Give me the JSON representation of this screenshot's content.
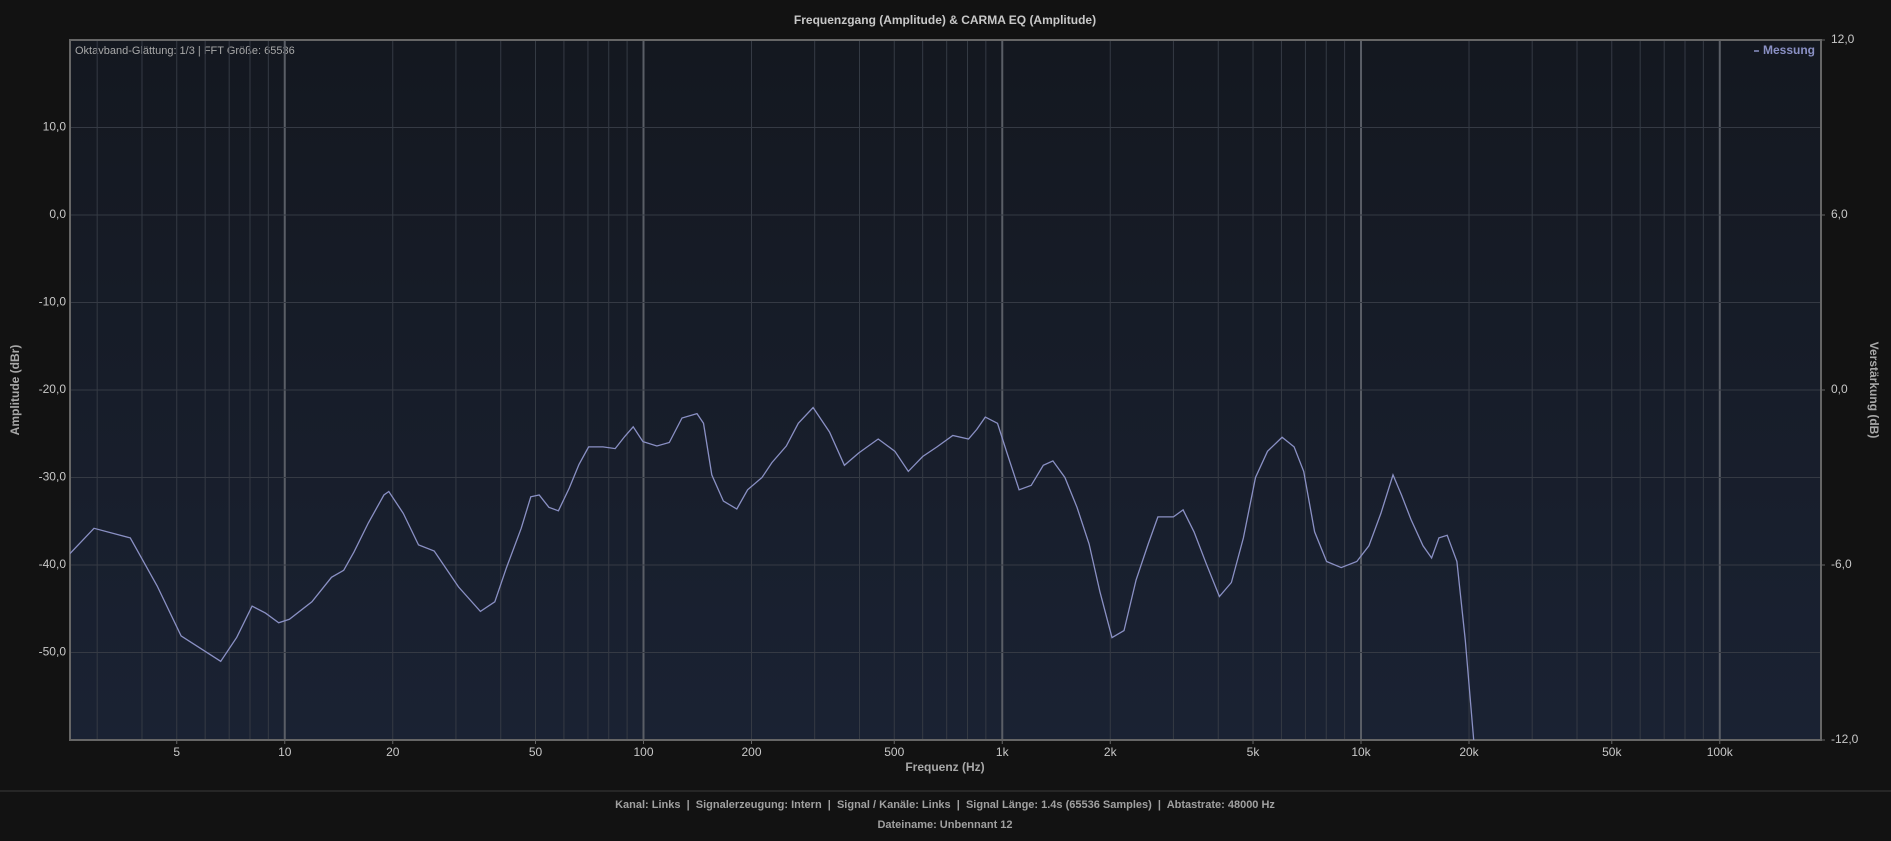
{
  "chart_data": {
    "type": "line",
    "title": "Frequenzgang (Amplitude) & CARMA EQ (Amplitude)",
    "annotation": "Oktavband-Glättung: 1/3 | FFT Größe: 65536",
    "x_label": "Frequenz (Hz)",
    "y_label": "Amplitude (dBr)",
    "y2_label": "Verstärkung (dB)",
    "log_x": true,
    "grid": true,
    "legend": "top-right",
    "xlim": [
      2.52,
      191500
    ],
    "ylim": [
      -60,
      20
    ],
    "y2lim": [
      -12,
      12
    ],
    "xticks": [
      5,
      10,
      20,
      50,
      100,
      200,
      500,
      {
        "value": 1000,
        "label": "1k"
      },
      {
        "value": 2000,
        "label": "2k"
      },
      {
        "value": 5000,
        "label": "5k"
      },
      {
        "value": 10000,
        "label": "10k"
      },
      {
        "value": 20000,
        "label": "20k"
      },
      {
        "value": 50000,
        "label": "50k"
      },
      {
        "value": 100000,
        "label": "100k"
      }
    ],
    "x_gridlines": [
      3,
      4,
      5,
      6,
      7,
      8,
      9,
      10,
      20,
      30,
      40,
      50,
      60,
      70,
      80,
      90,
      100,
      200,
      300,
      400,
      500,
      600,
      700,
      800,
      900,
      1000,
      2000,
      3000,
      4000,
      5000,
      6000,
      7000,
      8000,
      9000,
      10000,
      20000,
      30000,
      40000,
      50000,
      60000,
      70000,
      80000,
      90000,
      100000
    ],
    "yticks": [
      {
        "value": 10,
        "label": "10,0"
      },
      {
        "value": 0,
        "label": "0,0"
      },
      {
        "value": -10,
        "label": "-10,0"
      },
      {
        "value": -20,
        "label": "-20,0"
      },
      {
        "value": -30,
        "label": "-30,0"
      },
      {
        "value": -40,
        "label": "-40,0"
      },
      {
        "value": -50,
        "label": "-50,0"
      }
    ],
    "y2ticks": [
      {
        "value": 12,
        "label": "12,0"
      },
      {
        "value": 6,
        "label": "6,0"
      },
      {
        "value": 0,
        "label": "0,0"
      },
      {
        "value": -6,
        "label": "-6,0"
      },
      {
        "value": -12,
        "label": "-12,0"
      }
    ],
    "series": [
      {
        "name": "Messung",
        "color": "#8a90c4",
        "x": [
          2.52,
          2.94,
          3.71,
          4.41,
          5.14,
          6.63,
          7.34,
          8.11,
          8.84,
          9.62,
          10.3,
          11.9,
          13.5,
          14.6,
          15.6,
          17.1,
          18.9,
          19.5,
          21.4,
          23.6,
          26.1,
          30.5,
          35.1,
          38.5,
          41.5,
          45.6,
          48.5,
          51.2,
          54.5,
          57.9,
          62.1,
          66.1,
          70.3,
          77.1,
          83.4,
          88.7,
          93.6,
          99.6,
          109,
          118,
          128,
          141,
          147,
          155,
          167,
          182,
          195,
          214,
          228,
          250,
          270,
          297,
          330,
          363,
          398,
          451,
          502,
          547,
          600,
          658,
          728,
          805,
          849,
          897,
          970,
          1031,
          1114,
          1204,
          1301,
          1384,
          1495,
          1616,
          1746,
          1872,
          2023,
          2185,
          2361,
          2551,
          2715,
          3000,
          3192,
          3423,
          3699,
          4029,
          4353,
          4702,
          5080,
          5488,
          6026,
          6508,
          6923,
          7425,
          8020,
          8806,
          9730,
          10520,
          11360,
          12280,
          12970,
          13780,
          14890,
          15730,
          16480,
          17390,
          18500,
          19530,
          20610
        ],
        "values": [
          -38.7,
          -35.8,
          -36.9,
          -42.4,
          -48.1,
          -51.0,
          -48.3,
          -44.7,
          -45.5,
          -46.6,
          -46.2,
          -44.2,
          -41.4,
          -40.6,
          -38.5,
          -35.2,
          -32.0,
          -31.6,
          -34.1,
          -37.7,
          -38.4,
          -42.5,
          -45.3,
          -44.2,
          -40.3,
          -35.8,
          -32.2,
          -32.0,
          -33.4,
          -33.8,
          -31.2,
          -28.5,
          -26.5,
          -26.5,
          -26.7,
          -25.3,
          -24.2,
          -25.9,
          -26.4,
          -26.0,
          -23.2,
          -22.7,
          -23.8,
          -29.7,
          -32.7,
          -33.6,
          -31.4,
          -30.0,
          -28.3,
          -26.4,
          -23.8,
          -22.0,
          -24.8,
          -28.6,
          -27.2,
          -25.6,
          -27.0,
          -29.3,
          -27.6,
          -26.5,
          -25.2,
          -25.6,
          -24.5,
          -23.1,
          -23.8,
          -27.2,
          -31.4,
          -30.9,
          -28.6,
          -28.1,
          -30.0,
          -33.4,
          -37.6,
          -43.1,
          -48.3,
          -47.5,
          -41.7,
          -37.6,
          -34.5,
          -34.5,
          -33.7,
          -36.2,
          -39.8,
          -43.6,
          -42.0,
          -36.9,
          -30.0,
          -27.0,
          -25.4,
          -26.5,
          -29.3,
          -36.2,
          -39.6,
          -40.3,
          -39.6,
          -37.8,
          -34.1,
          -29.7,
          -32.0,
          -34.8,
          -37.8,
          -39.2,
          -36.9,
          -36.6,
          -39.6,
          -48.6,
          -60
        ]
      }
    ]
  },
  "footer": [
    "Kanal: Links  |  Signalerzeugung: Intern  |  Signal / Kanäle: Links  |  Signal Länge: 1.4s (65536 Samples)  |  Abtastrate: 48000 Hz",
    "Dateiname: Unbennant 12"
  ]
}
